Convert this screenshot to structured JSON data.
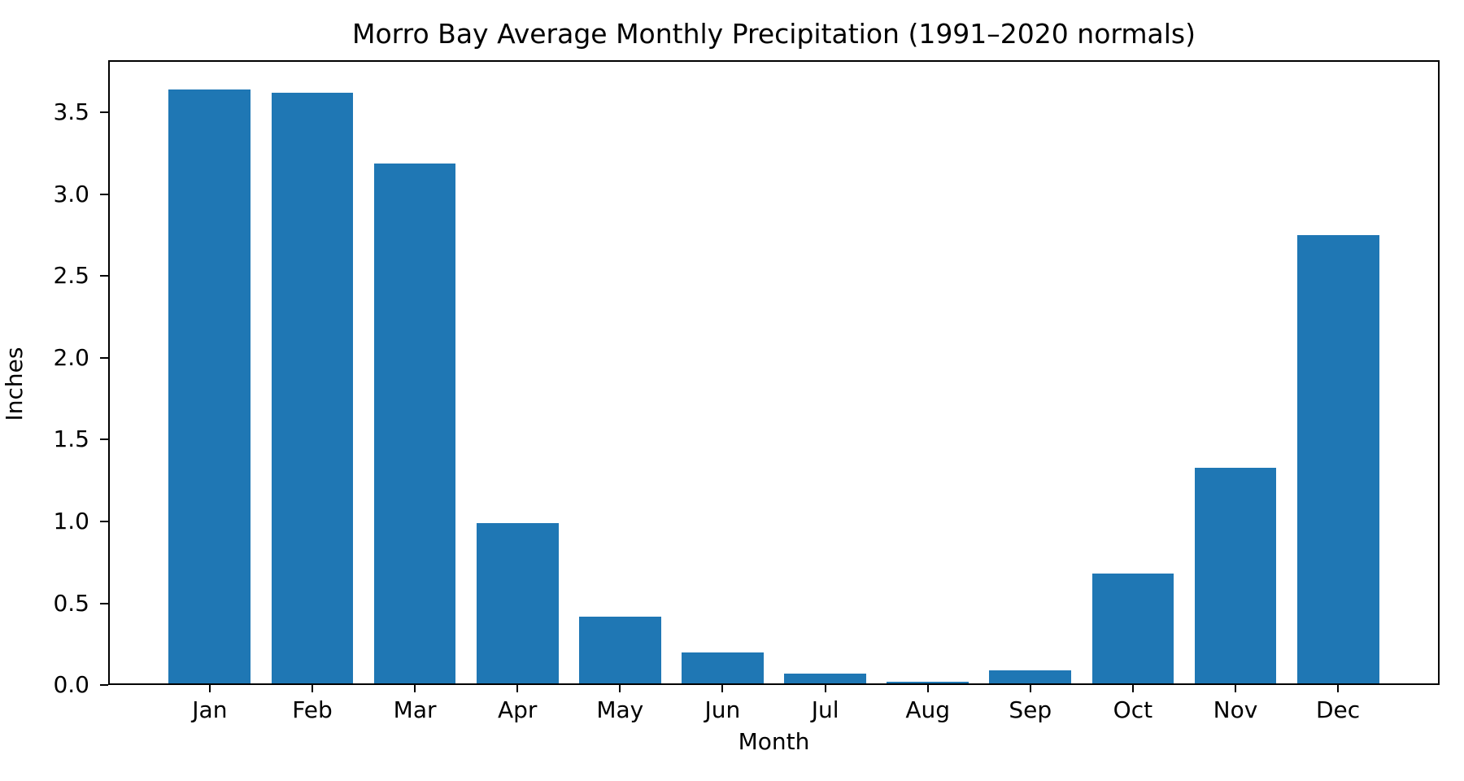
{
  "chart_data": {
    "type": "bar",
    "title": "Morro Bay Average Monthly Precipitation (1991–2020 normals)",
    "xlabel": "Month",
    "ylabel": "Inches",
    "categories": [
      "Jan",
      "Feb",
      "Mar",
      "Apr",
      "May",
      "Jun",
      "Jul",
      "Aug",
      "Sep",
      "Oct",
      "Nov",
      "Dec"
    ],
    "values": [
      3.64,
      3.62,
      3.19,
      0.99,
      0.42,
      0.2,
      0.07,
      0.02,
      0.09,
      0.68,
      1.33,
      2.75
    ],
    "yticks": [
      0.0,
      0.5,
      1.0,
      1.5,
      2.0,
      2.5,
      3.0,
      3.5
    ],
    "ytick_labels": [
      "0.0",
      "0.5",
      "1.0",
      "1.5",
      "2.0",
      "2.5",
      "3.0",
      "3.5"
    ],
    "ylim": [
      0,
      3.82
    ],
    "bar_color": "#1f77b4",
    "background_color": "#ffffff",
    "text_color": "#000000",
    "grid": false,
    "legend": null
  }
}
